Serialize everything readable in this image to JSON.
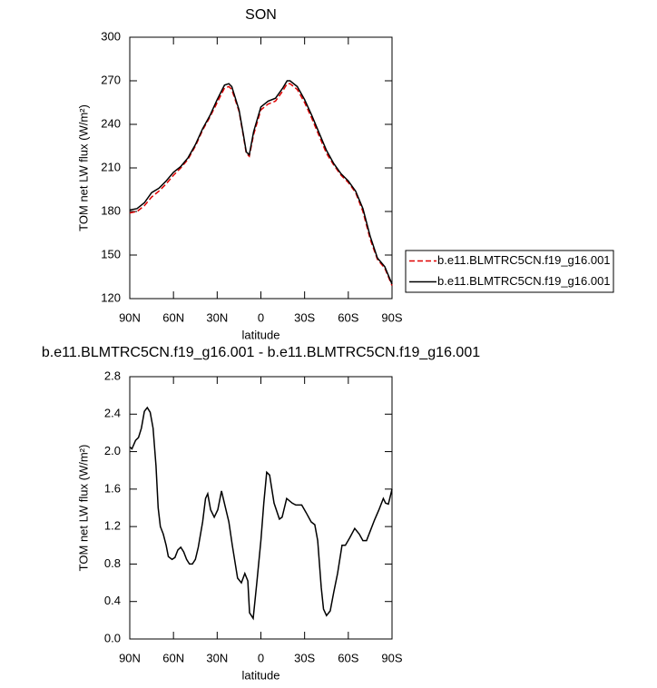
{
  "chart_data": [
    {
      "type": "line",
      "title": "SON",
      "x_label": "latitude",
      "y_label": "TOM net LW flux (W/m²)",
      "xlim": [
        90,
        -90
      ],
      "xticks": [
        {
          "value": 90,
          "label": "90N"
        },
        {
          "value": 60,
          "label": "60N"
        },
        {
          "value": 30,
          "label": "30N"
        },
        0,
        {
          "value": -30,
          "label": "30S"
        },
        {
          "value": -60,
          "label": "60S"
        },
        {
          "value": -90,
          "label": "90S"
        }
      ],
      "ylim": [
        120,
        300
      ],
      "yticks": [
        120,
        150,
        180,
        210,
        240,
        270,
        300
      ],
      "legend": "outside right",
      "x": [
        90,
        85,
        80,
        75,
        70,
        65,
        60,
        55,
        50,
        45,
        40,
        35,
        30,
        25,
        22,
        20,
        15,
        12,
        10,
        8,
        5,
        0,
        -5,
        -10,
        -15,
        -18,
        -20,
        -25,
        -30,
        -35,
        -40,
        -45,
        -50,
        -55,
        -60,
        -65,
        -70,
        -75,
        -80,
        -85,
        -90
      ],
      "series": [
        {
          "name": "b.e11.BLMTRC5CN.f19_g16.001",
          "color": "#e00000",
          "line_style": "dashed",
          "values": [
            179,
            180,
            184,
            190,
            194,
            199,
            205,
            210,
            216,
            225,
            236,
            245,
            255,
            265,
            266,
            264,
            249,
            232,
            220,
            218,
            233,
            250,
            254,
            256,
            263,
            268,
            268,
            264,
            255,
            244,
            232,
            220,
            212,
            205,
            200,
            193,
            180,
            161,
            147,
            141,
            129
          ]
        },
        {
          "name": "b.e11.BLMTRC5CN.f19_g16.001",
          "color": "#000000",
          "line_style": "solid",
          "values": [
            181,
            182,
            186,
            193,
            196,
            201,
            207,
            211,
            217,
            226,
            237,
            246,
            257,
            267,
            268,
            266,
            250,
            233,
            221,
            219,
            235,
            252,
            256,
            258,
            265,
            270,
            270,
            266,
            257,
            246,
            234,
            222,
            213,
            206,
            201,
            194,
            182,
            163,
            148,
            142,
            130
          ]
        }
      ]
    },
    {
      "type": "line",
      "title": "b.e11.BLMTRC5CN.f19_g16.001 - b.e11.BLMTRC5CN.f19_g16.001",
      "x_label": "latitude",
      "y_label": "TOM net LW flux (W/m²)",
      "xlim": [
        90,
        -90
      ],
      "xticks": [
        {
          "value": 90,
          "label": "90N"
        },
        {
          "value": 60,
          "label": "60N"
        },
        {
          "value": 30,
          "label": "30N"
        },
        0,
        {
          "value": -30,
          "label": "30S"
        },
        {
          "value": -60,
          "label": "60S"
        },
        {
          "value": -90,
          "label": "90S"
        }
      ],
      "ylim": [
        0,
        2.8
      ],
      "yticks": [
        {
          "value": 0,
          "label": "0.0"
        },
        0.4,
        0.8,
        1.2,
        1.6,
        {
          "value": 2,
          "label": "2.0"
        },
        2.4,
        2.8
      ],
      "x": [
        90,
        88.5,
        86,
        84,
        82,
        80,
        78,
        76,
        74,
        72,
        70.5,
        69,
        67,
        65,
        63.5,
        61,
        59,
        57,
        55,
        53,
        51,
        49,
        47,
        45,
        43,
        40,
        38,
        36.5,
        34.5,
        32,
        29.6,
        27,
        24.6,
        22,
        19.6,
        16,
        13.4,
        11,
        9,
        7.8,
        5.3,
        2.8,
        0,
        -2,
        -4,
        -6,
        -9,
        -12.7,
        -14.6,
        -17.7,
        -21.5,
        -24,
        -28,
        -31,
        -34.5,
        -37,
        -39,
        -41.4,
        -43,
        -45,
        -47.6,
        -50,
        -52.6,
        -55.7,
        -58,
        -61,
        -64.4,
        -67.5,
        -70,
        -72.5,
        -75,
        -78,
        -81,
        -84,
        -85.6,
        -87.5,
        -90
      ],
      "series": [
        {
          "color": "#000000",
          "line_style": "solid",
          "values": [
            2.05,
            2.03,
            2.12,
            2.15,
            2.25,
            2.43,
            2.47,
            2.42,
            2.25,
            1.85,
            1.4,
            1.2,
            1.12,
            1.0,
            0.88,
            0.85,
            0.87,
            0.95,
            0.98,
            0.93,
            0.85,
            0.8,
            0.8,
            0.85,
            0.98,
            1.25,
            1.5,
            1.55,
            1.38,
            1.3,
            1.38,
            1.58,
            1.42,
            1.25,
            1.0,
            0.65,
            0.6,
            0.7,
            0.62,
            0.28,
            0.22,
            0.6,
            1.05,
            1.45,
            1.78,
            1.75,
            1.45,
            1.28,
            1.3,
            1.5,
            1.45,
            1.43,
            1.43,
            1.35,
            1.25,
            1.22,
            1.05,
            0.55,
            0.32,
            0.25,
            0.3,
            0.5,
            0.7,
            1.0,
            1.0,
            1.08,
            1.18,
            1.12,
            1.05,
            1.05,
            1.15,
            1.27,
            1.38,
            1.5,
            1.45,
            1.44,
            1.6
          ]
        }
      ]
    }
  ]
}
